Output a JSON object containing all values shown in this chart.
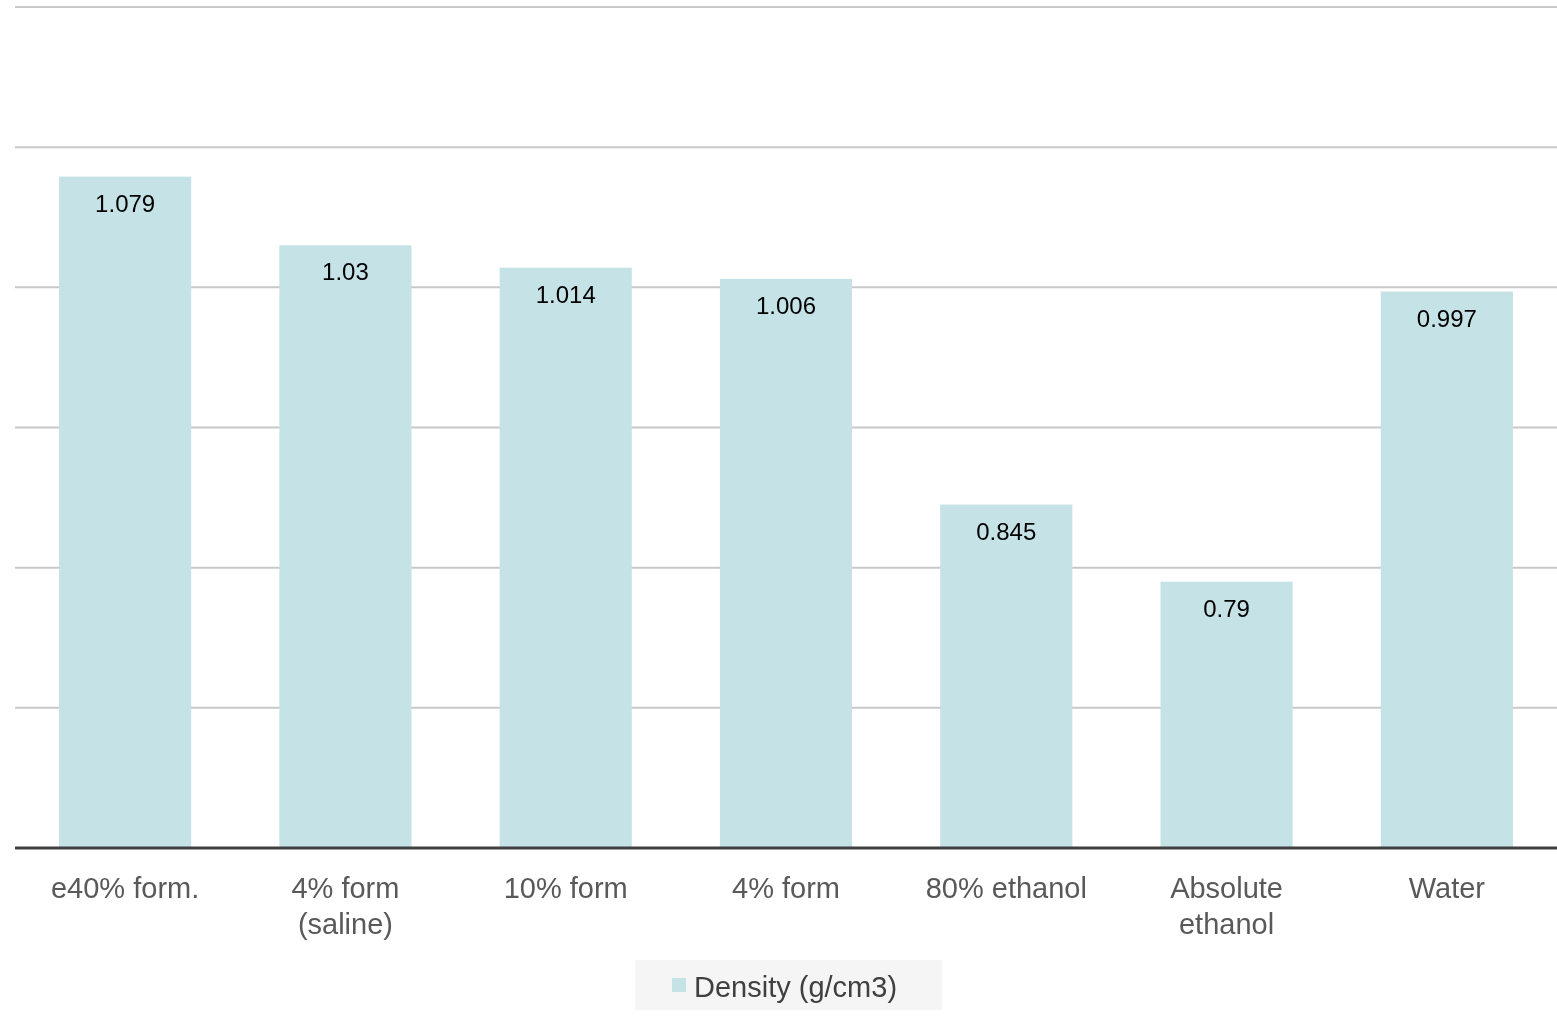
{
  "chart_data": {
    "type": "bar",
    "categories": [
      "e40% form.",
      "4% form (saline)",
      "10% form",
      "4% form",
      "80% ethanol",
      "Absolute ethanol",
      "Water"
    ],
    "series": [
      {
        "name": "Density (g/cm3)",
        "color": "#c5e3e6",
        "values": [
          1.079,
          1.03,
          1.014,
          1.006,
          0.845,
          0.79,
          0.997
        ]
      }
    ],
    "ylim": [
      0.6,
      1.2
    ],
    "yticks": [
      {
        "value": 0.6,
        "label": null
      },
      {
        "value": 0.7,
        "label": null
      },
      {
        "value": 0.8,
        "label": null
      },
      {
        "value": 0.9,
        "label": null
      },
      {
        "value": 1.0,
        "label": null
      },
      {
        "value": 1.1,
        "label": null
      },
      {
        "value": 1.2,
        "label": null
      }
    ],
    "tick_labels": "x",
    "grid": "y",
    "data_labels": true,
    "legend": "bottom"
  }
}
